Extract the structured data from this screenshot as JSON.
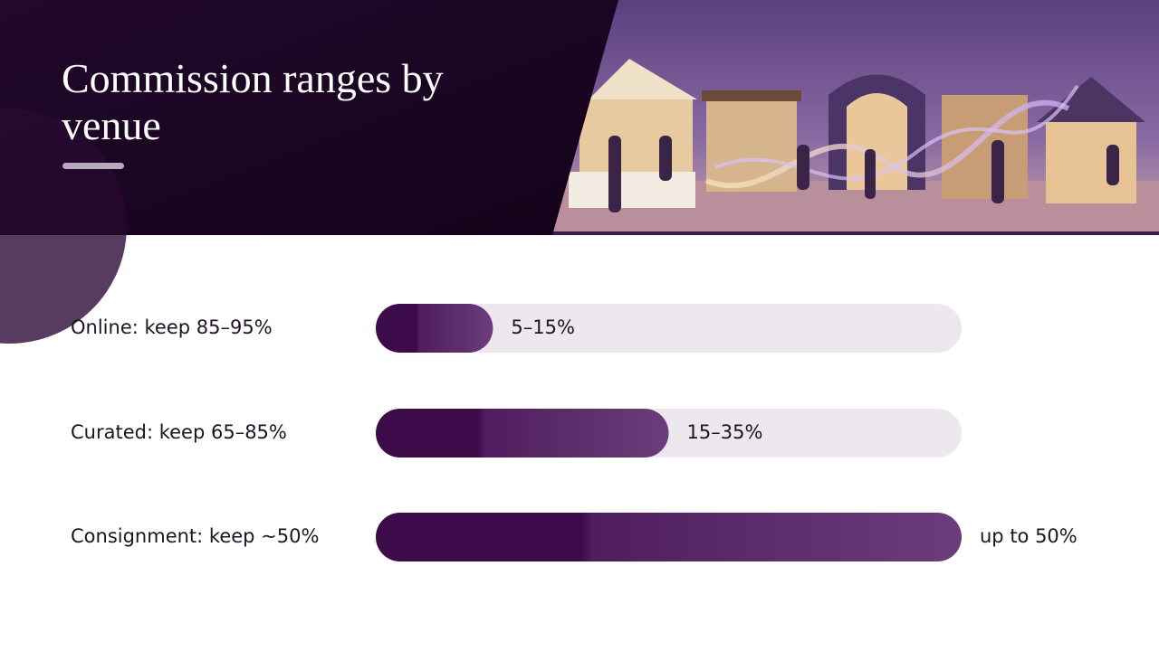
{
  "chart_data": {
    "type": "bar",
    "orientation": "horizontal",
    "title": "Commission ranges by venue",
    "categories": [
      "Online: keep 85–95%",
      "Curated: keep 65–85%",
      "Consignment: keep ~50%"
    ],
    "values": [
      10,
      25,
      50
    ],
    "annotations": [
      "5–15%",
      "15–35%",
      "up to 50%"
    ],
    "xlim": [
      0,
      50
    ],
    "colors": [
      "#3d0a4a",
      "#6b3d7a"
    ],
    "track_color": "#ece8ee"
  }
}
